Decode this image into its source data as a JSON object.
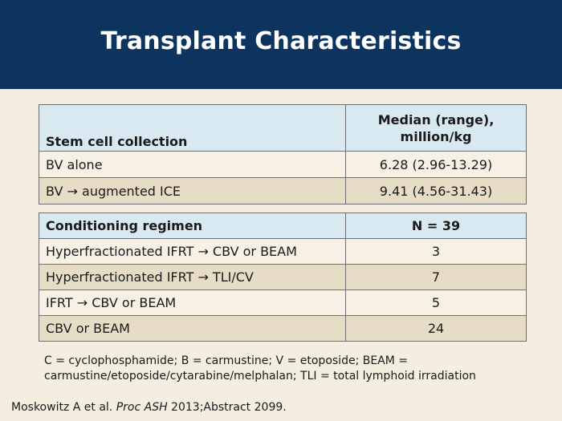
{
  "slide": {
    "title": "Transplant Characteristics"
  },
  "colors": {
    "header_bg": "#0d335f",
    "table_header_bg": "#d8e9f2",
    "row_light": "#f6f1e4",
    "row_dark": "#e7dcc6",
    "background": "#f3eedf"
  },
  "table1": {
    "headers": [
      "Stem cell collection",
      "Median (range),\nmillion/kg"
    ],
    "header_line1": "Median (range),",
    "header_line2": "million/kg",
    "rows": [
      [
        "BV alone",
        "6.28 (2.96-13.29)"
      ],
      [
        "BV → augmented ICE",
        "9.41 (4.56-31.43)"
      ]
    ]
  },
  "table2": {
    "headers": [
      "Conditioning regimen",
      "N = 39"
    ],
    "rows": [
      [
        "Hyperfractionated IFRT → CBV or BEAM",
        "3"
      ],
      [
        "Hyperfractionated IFRT → TLI/CV",
        "7"
      ],
      [
        "IFRT → CBV or BEAM",
        "5"
      ],
      [
        "CBV or BEAM",
        "24"
      ]
    ]
  },
  "footnote": "C = cyclophosphamide; B = carmustine; V = etoposide; BEAM = carmustine/etoposide/cytarabine/melphalan; TLI = total lymphoid irradiation",
  "citation": {
    "authors": "Moskowitz A et al. ",
    "journal": "Proc ASH",
    "rest": " 2013;Abstract 2099."
  }
}
